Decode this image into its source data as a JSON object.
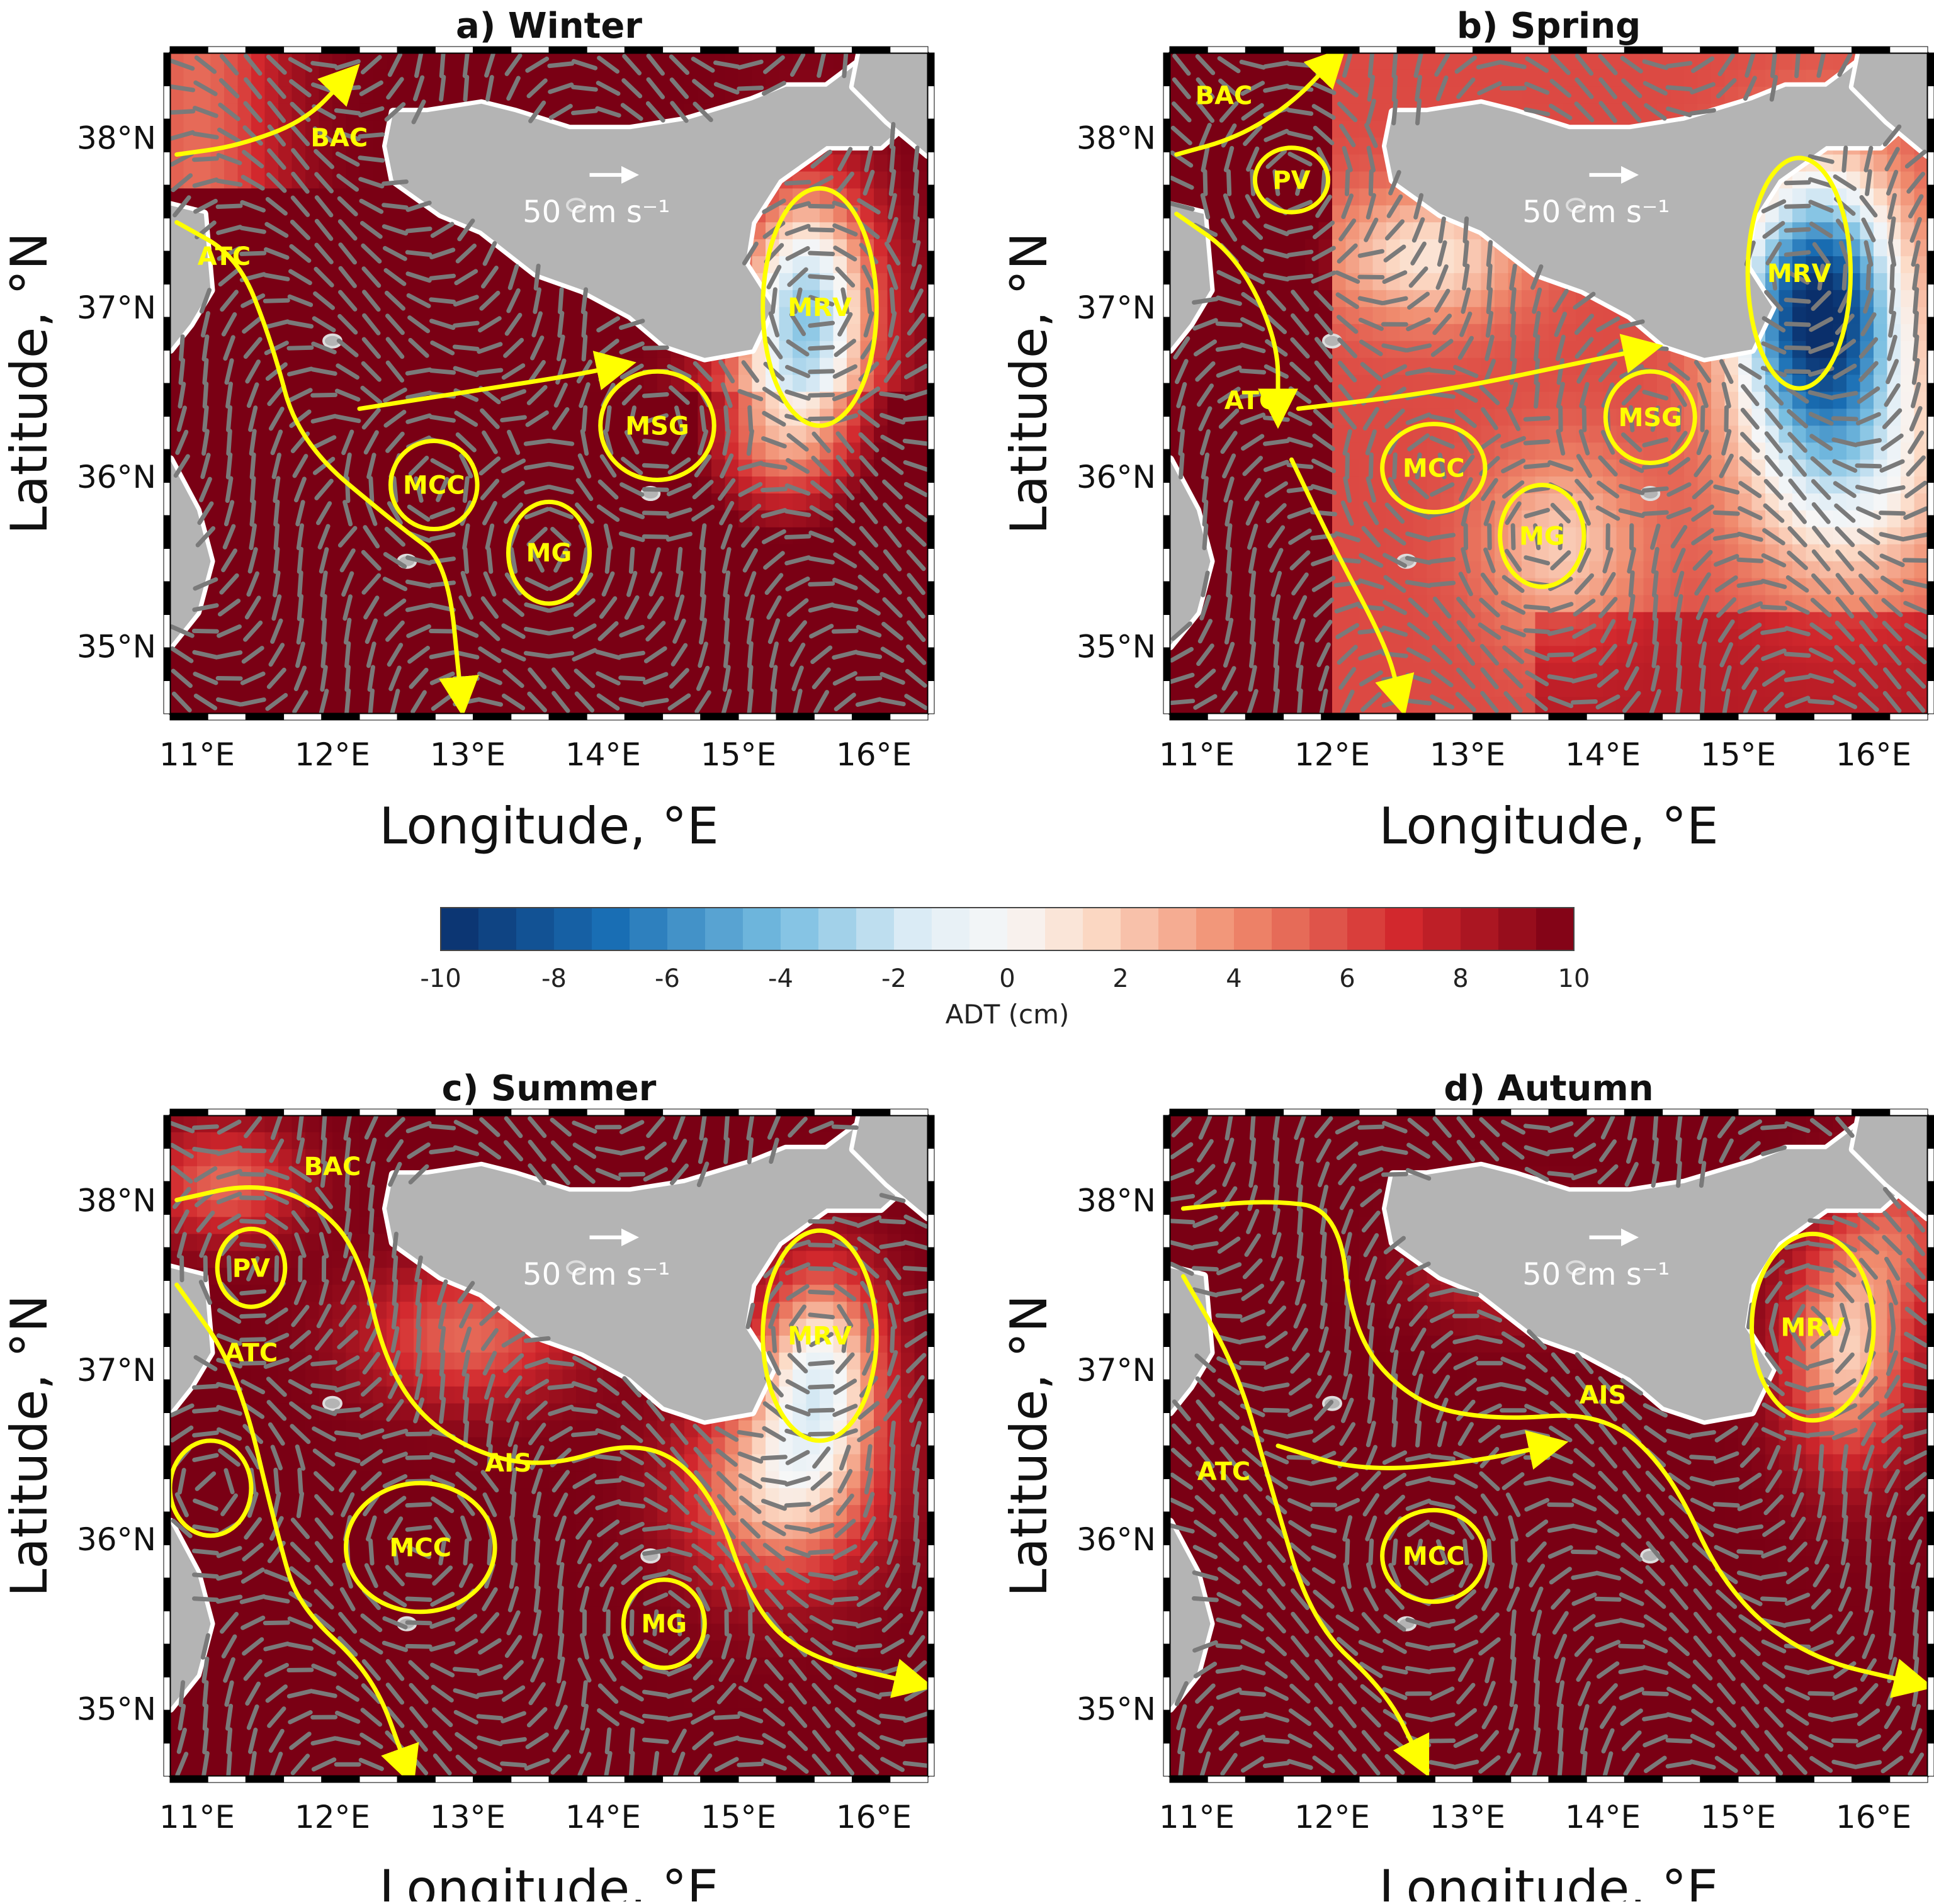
{
  "figure": {
    "panels": [
      {
        "id": "a",
        "title": "a) Winter",
        "features": [
          "BAC",
          "ATC",
          "MCC",
          "MG",
          "MSG",
          "MRV"
        ],
        "currents": [
          "BAC",
          "ATC"
        ]
      },
      {
        "id": "b",
        "title": "b) Spring",
        "features": [
          "BAC",
          "PV",
          "ATC",
          "MCC",
          "MG",
          "MSG",
          "MRV"
        ],
        "currents": [
          "BAC",
          "ATC"
        ]
      },
      {
        "id": "c",
        "title": "c) Summer",
        "features": [
          "BAC",
          "PV",
          "ATC",
          "AIS",
          "MCC",
          "MG",
          "MRV"
        ],
        "currents": [
          "BAC",
          "ATC",
          "AIS"
        ]
      },
      {
        "id": "d",
        "title": "d) Autumn",
        "features": [
          "ATC",
          "AIS",
          "MCC",
          "MRV"
        ],
        "currents": [
          "ATC",
          "AIS"
        ]
      }
    ],
    "axes": {
      "xlabel": "Longitude, °E",
      "ylabel": "Latitude, °N",
      "xticks": [
        "11°E",
        "12°E",
        "13°E",
        "14°E",
        "15°E",
        "16°E"
      ],
      "yticks": [
        "35°N",
        "36°N",
        "37°N",
        "38°N"
      ],
      "xlim": [
        10.8,
        16.4
      ],
      "ylim": [
        34.6,
        38.5
      ]
    },
    "scale_arrow_label": "50 cm s⁻¹",
    "colorbar": {
      "label": "ADT (cm)",
      "range": [
        -10,
        10
      ],
      "ticks": [
        "-10",
        "-8",
        "-6",
        "-4",
        "-2",
        "0",
        "2",
        "4",
        "6",
        "8",
        "10"
      ]
    },
    "colors": {
      "feature": "#ffff00",
      "land": "#b4b4b4",
      "vector": "#7a7a7a",
      "cmap_low": "#0a2f6b",
      "cmap_mid": "#f7f7f7",
      "cmap_high": "#7a0014"
    }
  }
}
